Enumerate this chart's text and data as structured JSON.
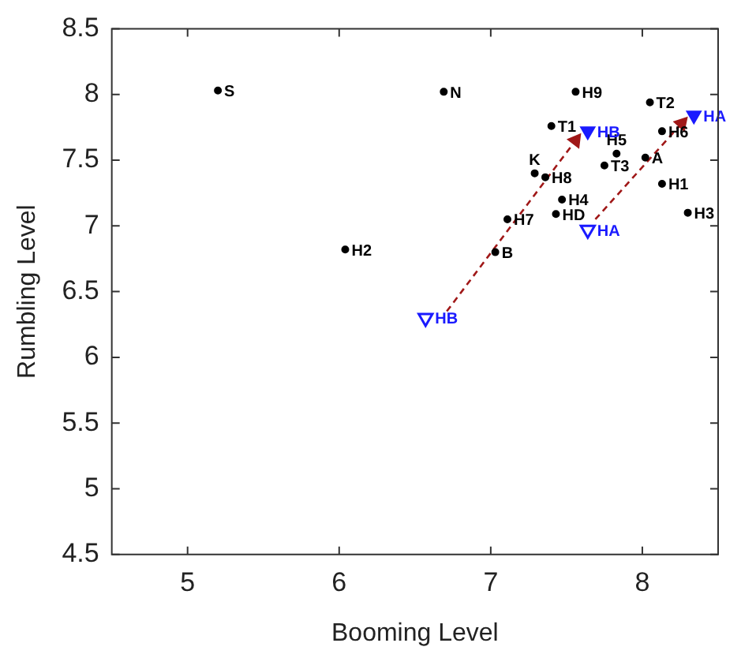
{
  "chart_data": {
    "type": "scatter",
    "xlabel": "Booming Level",
    "ylabel": "Rumbling Level",
    "xlim": [
      4.5,
      8.5
    ],
    "xticks": [
      5,
      6,
      7,
      8
    ],
    "ylim": [
      4.5,
      8.5
    ],
    "yticks": [
      4.5,
      5,
      5.5,
      6,
      6.5,
      7,
      7.5,
      8,
      8.5
    ],
    "grid": false,
    "legend": false,
    "series": [
      {
        "color": "#000000",
        "marker": "circle",
        "x": [
          5.2,
          6.69,
          7.56,
          8.05,
          7.4,
          8.13,
          7.83,
          8.02,
          7.75,
          7.29,
          7.36,
          8.13,
          7.47,
          7.11,
          7.43,
          8.3,
          6.04,
          7.03
        ],
        "values": [
          8.03,
          8.02,
          8.02,
          7.94,
          7.76,
          7.72,
          7.55,
          7.52,
          7.46,
          7.4,
          7.37,
          7.32,
          7.2,
          7.05,
          7.09,
          7.1,
          6.82,
          6.8
        ],
        "value_labels": [
          "S",
          "N",
          "H9",
          "T2",
          "T1",
          "H6",
          "H5",
          "A",
          "T3",
          "K",
          "H8",
          "H1",
          "H4",
          "H7",
          "HD",
          "H3",
          "H2",
          "B"
        ]
      },
      {
        "color": "#1a1aff",
        "marker": "triangle",
        "x": [
          6.57,
          7.64
        ],
        "values": [
          6.3,
          6.97
        ],
        "value_labels": [
          "HB",
          "HA"
        ]
      },
      {
        "color": "#1a1aff",
        "marker": "triangle",
        "x": [
          7.64,
          8.34
        ],
        "values": [
          7.72,
          7.84
        ],
        "value_labels": [
          "HB",
          "HA"
        ]
      },
      {
        "type": "line",
        "color": "#a01818",
        "line_style": "dashed",
        "x": [
          6.71,
          7.56
        ],
        "values": [
          6.35,
          7.65
        ]
      },
      {
        "type": "line",
        "color": "#a01818",
        "line_style": "dashed",
        "x": [
          7.69,
          8.26
        ],
        "values": [
          7.05,
          7.78
        ]
      }
    ]
  }
}
